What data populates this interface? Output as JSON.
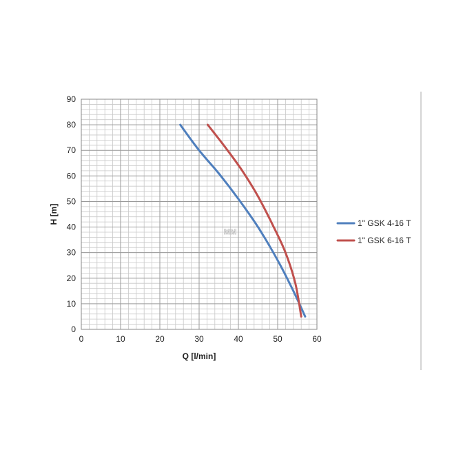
{
  "chart_data": {
    "type": "line",
    "title": "",
    "xlabel": "Q [l/min]",
    "ylabel": "H [m]",
    "xlim": [
      0,
      60
    ],
    "ylim": [
      0,
      90
    ],
    "x_ticks": [
      0,
      10,
      20,
      30,
      40,
      50,
      60
    ],
    "y_ticks": [
      0,
      10,
      20,
      30,
      40,
      50,
      60,
      70,
      80,
      90
    ],
    "grid": true,
    "legend_position": "right",
    "watermark": "MM",
    "series": [
      {
        "name": "1\" GSK 4-16 T",
        "color": "#4f7fbd",
        "points": [
          [
            25.2,
            80
          ],
          [
            30,
            70
          ],
          [
            35,
            61
          ],
          [
            40,
            51
          ],
          [
            45,
            40
          ],
          [
            50,
            27
          ],
          [
            54,
            15
          ],
          [
            57,
            5
          ]
        ]
      },
      {
        "name": "1\" GSK 6-16 T",
        "color": "#c0504d",
        "points": [
          [
            32.2,
            80
          ],
          [
            37,
            70.5
          ],
          [
            41,
            62
          ],
          [
            45,
            52
          ],
          [
            49,
            40
          ],
          [
            52,
            30
          ],
          [
            54.5,
            18
          ],
          [
            56,
            5
          ]
        ]
      }
    ]
  }
}
